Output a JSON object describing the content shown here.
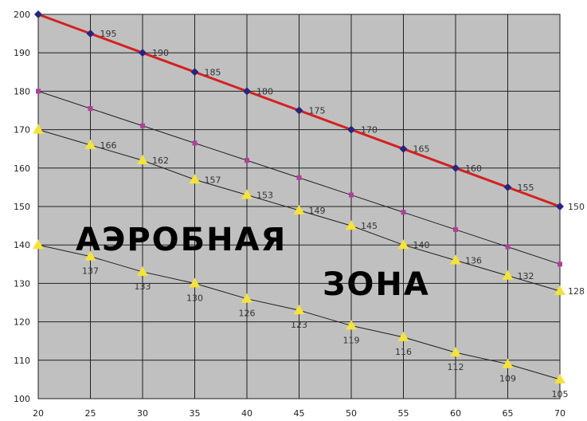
{
  "chart_data": {
    "type": "line",
    "title": "",
    "xlabel": "",
    "ylabel": "",
    "x": [
      20,
      25,
      30,
      35,
      40,
      45,
      50,
      55,
      60,
      65,
      70
    ],
    "xlim": [
      20,
      70
    ],
    "ylim": [
      100,
      200
    ],
    "x_ticks": [
      "20",
      "25",
      "30",
      "35",
      "40",
      "45",
      "50",
      "55",
      "60",
      "65",
      "70"
    ],
    "y_ticks": [
      "100",
      "110",
      "120",
      "130",
      "140",
      "150",
      "160",
      "170",
      "180",
      "190",
      "200"
    ],
    "grid": true,
    "series": [
      {
        "values": [
          200,
          195,
          190,
          185,
          180,
          175,
          170,
          165,
          160,
          155,
          150
        ],
        "labels": [
          "",
          "195",
          "190",
          "185",
          "180",
          "175",
          "170",
          "165",
          "160",
          "155",
          "150"
        ],
        "color": "#d42020",
        "marker": "diamond",
        "marker_color": "#262680",
        "labelpos": "right"
      },
      {
        "values": [
          180,
          175.5,
          171,
          166.5,
          162,
          157.5,
          153,
          148.5,
          144,
          139.5,
          135
        ],
        "labels": [],
        "color": "#202020",
        "marker": "square",
        "marker_color": "#b0409a",
        "labelpos": "right"
      },
      {
        "values": [
          170,
          166,
          162,
          157,
          153,
          149,
          145,
          140,
          136,
          132,
          128
        ],
        "labels": [
          "",
          "166",
          "162",
          "157",
          "153",
          "149",
          "145",
          "140",
          "136",
          "132",
          "128"
        ],
        "color": "#202020",
        "marker": "triangle",
        "marker_color": "#f5e33a",
        "labelpos": "right"
      },
      {
        "values": [
          140,
          137,
          133,
          130,
          126,
          123,
          119,
          116,
          112,
          109,
          105
        ],
        "labels": [
          "",
          "137",
          "133",
          "130",
          "126",
          "123",
          "119",
          "116",
          "112",
          "109",
          "105"
        ],
        "color": "#202020",
        "marker": "triangle",
        "marker_color": "#f5e33a",
        "labelpos": "below"
      }
    ],
    "annotations": [
      "АЭРОБНАЯ",
      "ЗОНА"
    ]
  },
  "colors": {
    "plot_bg": "#c0c0c0",
    "grid": "#202020",
    "outline": "#000000"
  }
}
